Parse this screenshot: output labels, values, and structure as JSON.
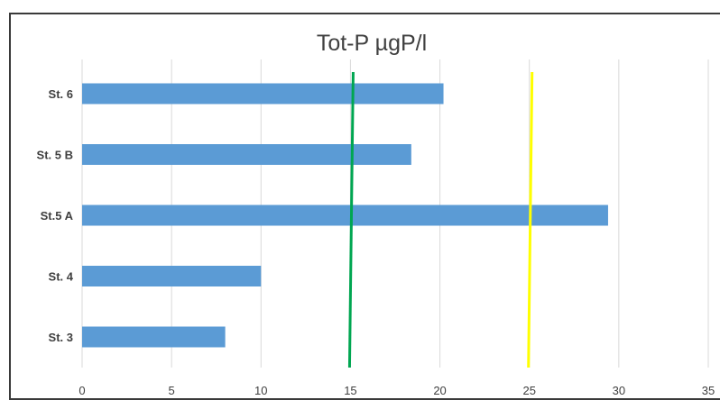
{
  "chart_data": {
    "type": "bar",
    "orientation": "horizontal",
    "title": "Tot-P µgP/l",
    "categories": [
      "St. 6",
      "St. 5 B",
      "St.5 A",
      "St. 4",
      "St. 3"
    ],
    "values": [
      20.2,
      18.4,
      29.4,
      10.0,
      8.0
    ],
    "xlim": [
      0,
      35
    ],
    "xticks": [
      0,
      5,
      10,
      15,
      20,
      25,
      30,
      35
    ],
    "grid": "vertical",
    "bar_color": "#5b9bd5",
    "reference_lines": [
      {
        "value": 15,
        "color": "#00a651"
      },
      {
        "value": 25,
        "color": "#ffff00"
      }
    ]
  }
}
